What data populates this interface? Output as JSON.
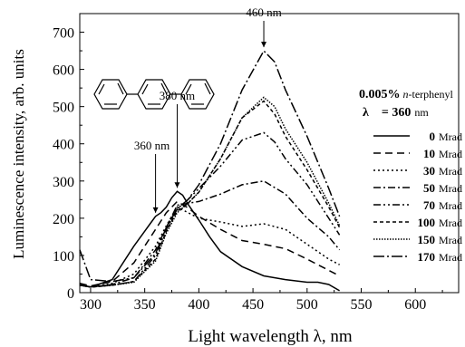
{
  "chart_data": {
    "type": "line",
    "xlabel": "Light wavelength  λ, nm",
    "ylabel": "Luminescence intensity, arb. units",
    "xlim": [
      290,
      640
    ],
    "ylim": [
      0,
      750
    ],
    "xticks": [
      300,
      350,
      400,
      450,
      500,
      550,
      600
    ],
    "yticks": [
      0,
      100,
      200,
      300,
      400,
      500,
      600,
      700
    ],
    "legend": {
      "header_bold": "0.005%",
      "header_italic": "n",
      "header_rest": "-terphenyl",
      "lambda_symbol": "λ",
      "lambda_value": "= 360",
      "lambda_unit": "nm",
      "placement": "right"
    },
    "annotations": [
      {
        "label": "360 nm",
        "x": 360
      },
      {
        "label": "380 nm",
        "x": 380
      },
      {
        "label": "460 nm",
        "x": 460
      }
    ],
    "molecule": "n-terphenyl structure (three linked benzene rings)",
    "series": [
      {
        "name": "0",
        "unit": "Mrad",
        "dash": "solid",
        "x": [
          290,
          300,
          320,
          340,
          355,
          360,
          365,
          370,
          375,
          380,
          385,
          390,
          400,
          410,
          420,
          440,
          460,
          480,
          500,
          510,
          520,
          530
        ],
        "y": [
          20,
          15,
          35,
          125,
          185,
          205,
          215,
          230,
          255,
          272,
          262,
          238,
          195,
          150,
          110,
          70,
          45,
          35,
          28,
          28,
          22,
          5
        ]
      },
      {
        "name": "10",
        "unit": "Mrad",
        "dash": "longdash",
        "x": [
          290,
          300,
          320,
          340,
          360,
          370,
          380,
          390,
          400,
          420,
          440,
          460,
          480,
          500,
          520,
          530
        ],
        "y": [
          25,
          18,
          30,
          80,
          170,
          215,
          245,
          228,
          205,
          170,
          140,
          130,
          118,
          90,
          60,
          45
        ]
      },
      {
        "name": "30",
        "unit": "Mrad",
        "dash": "dot",
        "x": [
          290,
          300,
          320,
          340,
          360,
          370,
          380,
          390,
          400,
          420,
          440,
          460,
          480,
          500,
          520,
          530
        ],
        "y": [
          20,
          15,
          25,
          50,
          125,
          180,
          230,
          215,
          200,
          190,
          178,
          185,
          170,
          130,
          90,
          75
        ]
      },
      {
        "name": "50",
        "unit": "Mrad",
        "dash": "dashdot",
        "x": [
          290,
          300,
          320,
          340,
          360,
          370,
          380,
          390,
          400,
          420,
          440,
          460,
          480,
          500,
          520,
          530
        ],
        "y": [
          20,
          15,
          22,
          40,
          115,
          175,
          235,
          240,
          245,
          265,
          290,
          300,
          265,
          200,
          150,
          115
        ]
      },
      {
        "name": "70",
        "unit": "Mrad",
        "dash": "dashdotdot",
        "x": [
          290,
          300,
          320,
          340,
          360,
          370,
          380,
          390,
          400,
          420,
          440,
          460,
          470,
          480,
          500,
          520,
          530
        ],
        "y": [
          22,
          15,
          20,
          30,
          100,
          170,
          225,
          250,
          280,
          340,
          410,
          430,
          405,
          360,
          290,
          200,
          155
        ]
      },
      {
        "name": "100",
        "unit": "Mrad",
        "dash": "shortdash",
        "x": [
          290,
          300,
          320,
          340,
          360,
          370,
          380,
          390,
          400,
          420,
          440,
          460,
          470,
          480,
          500,
          520,
          530
        ],
        "y": [
          22,
          15,
          20,
          30,
          90,
          165,
          220,
          240,
          270,
          360,
          470,
          515,
          480,
          420,
          330,
          230,
          175
        ]
      },
      {
        "name": "150",
        "unit": "Mrad",
        "dash": "shortdot",
        "x": [
          290,
          300,
          320,
          340,
          360,
          370,
          380,
          390,
          400,
          420,
          440,
          460,
          470,
          480,
          500,
          520,
          530
        ],
        "y": [
          22,
          15,
          20,
          28,
          85,
          160,
          215,
          240,
          270,
          360,
          470,
          525,
          500,
          440,
          350,
          240,
          180
        ]
      },
      {
        "name": "170",
        "unit": "Mrad",
        "dash": "dashdotlong",
        "x": [
          290,
          295,
          300,
          320,
          340,
          360,
          370,
          380,
          390,
          400,
          420,
          440,
          460,
          470,
          480,
          500,
          520,
          530
        ],
        "y": [
          115,
          75,
          35,
          30,
          40,
          105,
          175,
          225,
          250,
          290,
          400,
          545,
          650,
          620,
          545,
          420,
          280,
          205
        ]
      }
    ]
  }
}
